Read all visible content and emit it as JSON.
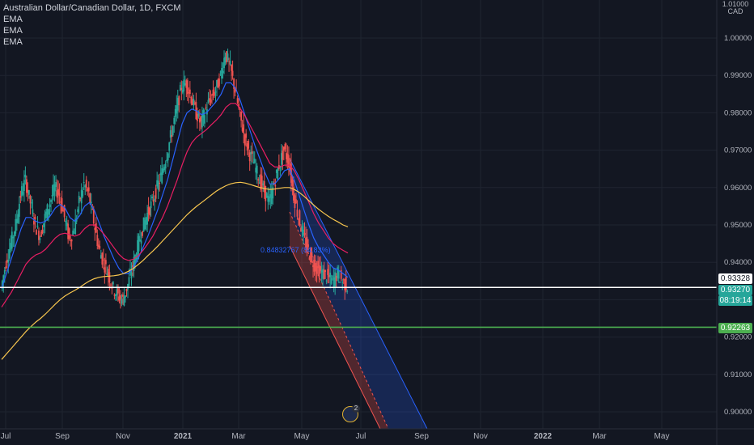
{
  "header": {
    "title": "Australian Dollar/Canadian Dollar, 1D, FXCM",
    "indicators": [
      "EMA",
      "EMA",
      "EMA"
    ],
    "currency_line1": "1.01000",
    "currency_line2": "CAD"
  },
  "annotation": {
    "text": "0.84832767 (84.83%)"
  },
  "price_tags": {
    "white_line": "0.93328",
    "current_price": "0.93270",
    "countdown": "08:19:14",
    "support": "0.92263"
  },
  "avatar_badge": "2",
  "colors": {
    "background": "#131722",
    "grid": "#1f2430",
    "bull": "#26a69a",
    "bear": "#ef5350",
    "ema_fast": "#2962ff",
    "ema_mid": "#e91e63",
    "ema_slow": "#f9c74f",
    "support_line": "#4caf50",
    "price_line": "#ffffff"
  },
  "chart_data": {
    "type": "candlestick",
    "title": "Australian Dollar/Canadian Dollar, 1D, FXCM",
    "yaxis": {
      "ticks": [
        0.9,
        0.91,
        0.92,
        0.93,
        0.94,
        0.95,
        0.96,
        0.97,
        0.98,
        0.99,
        1.0
      ],
      "tick_labels": [
        "0.90000",
        "0.91000",
        "0.92000",
        "",
        "0.94000",
        "0.95000",
        "0.96000",
        "0.97000",
        "0.98000",
        "0.99000",
        "1.00000"
      ],
      "range": [
        0.8975,
        1.0105
      ]
    },
    "xaxis": {
      "labels": [
        "Jul",
        "Sep",
        "Nov",
        "2021",
        "Mar",
        "May",
        "Jul",
        "Sep",
        "Nov",
        "2022",
        "Mar",
        "May"
      ],
      "bold": [
        "2021",
        "2022"
      ]
    },
    "price_close_path": [
      [
        0.933,
        0.94,
        0.945,
        0.95,
        0.958,
        0.962,
        0.956,
        0.95,
        0.947,
        0.952,
        0.956,
        0.96,
        0.958,
        0.952,
        0.946,
        0.949,
        0.956,
        0.961,
        0.958,
        0.951,
        0.944,
        0.94,
        0.937,
        0.933,
        0.931,
        0.93,
        0.934,
        0.939,
        0.944,
        0.949,
        0.953,
        0.956,
        0.96,
        0.964,
        0.969,
        0.975,
        0.981,
        0.987,
        0.988,
        0.984,
        0.98,
        0.977,
        0.981,
        0.984,
        0.986,
        0.99,
        0.996,
        0.992,
        0.986,
        0.979,
        0.973,
        0.969,
        0.966,
        0.962,
        0.959,
        0.956,
        0.961,
        0.966,
        0.97,
        0.967,
        0.958,
        0.952,
        0.947,
        0.943,
        0.94,
        0.938,
        0.937,
        0.936,
        0.935,
        0.937,
        0.935,
        0.9335
      ]
    ],
    "series": [
      {
        "name": "EMA",
        "role": "fast",
        "values": [
          0.933,
          0.937,
          0.941,
          0.945,
          0.949,
          0.952,
          0.952,
          0.951,
          0.9505,
          0.951,
          0.9525,
          0.9545,
          0.9555,
          0.9545,
          0.952,
          0.951,
          0.9525,
          0.955,
          0.956,
          0.954,
          0.9505,
          0.947,
          0.944,
          0.941,
          0.9385,
          0.937,
          0.937,
          0.9385,
          0.941,
          0.944,
          0.947,
          0.9505,
          0.954,
          0.958,
          0.962,
          0.967,
          0.972,
          0.977,
          0.98,
          0.981,
          0.9805,
          0.9795,
          0.98,
          0.9815,
          0.983,
          0.985,
          0.988,
          0.988,
          0.9865,
          0.983,
          0.979,
          0.975,
          0.971,
          0.9675,
          0.964,
          0.961,
          0.961,
          0.9625,
          0.9645,
          0.965,
          0.962,
          0.958,
          0.954,
          0.95,
          0.9465,
          0.944,
          0.942,
          0.94,
          0.9385,
          0.938,
          0.937,
          0.936
        ]
      },
      {
        "name": "EMA",
        "role": "mid",
        "values": [
          0.928,
          0.93,
          0.932,
          0.9345,
          0.937,
          0.9395,
          0.941,
          0.942,
          0.9425,
          0.9435,
          0.945,
          0.9465,
          0.9475,
          0.9478,
          0.9474,
          0.947,
          0.9475,
          0.949,
          0.95,
          0.95,
          0.949,
          0.9475,
          0.9458,
          0.944,
          0.9422,
          0.941,
          0.9405,
          0.9408,
          0.9418,
          0.9432,
          0.945,
          0.947,
          0.9495,
          0.952,
          0.955,
          0.9585,
          0.962,
          0.966,
          0.9695,
          0.972,
          0.9735,
          0.9745,
          0.9755,
          0.9768,
          0.978,
          0.9795,
          0.9815,
          0.9825,
          0.9825,
          0.981,
          0.979,
          0.9765,
          0.974,
          0.9715,
          0.969,
          0.9665,
          0.9655,
          0.9655,
          0.966,
          0.966,
          0.9645,
          0.962,
          0.959,
          0.956,
          0.953,
          0.9505,
          0.9485,
          0.9465,
          0.945,
          0.944,
          0.9432,
          0.9425
        ]
      },
      {
        "name": "EMA",
        "role": "slow",
        "values": [
          0.914,
          0.9155,
          0.917,
          0.9185,
          0.92,
          0.9215,
          0.9228,
          0.924,
          0.925,
          0.9262,
          0.9275,
          0.9288,
          0.93,
          0.931,
          0.9318,
          0.9325,
          0.9333,
          0.9342,
          0.935,
          0.9356,
          0.936,
          0.9362,
          0.9363,
          0.9364,
          0.9366,
          0.937,
          0.9376,
          0.9384,
          0.9394,
          0.9405,
          0.9418,
          0.943,
          0.9443,
          0.9457,
          0.9471,
          0.9485,
          0.9499,
          0.9513,
          0.9527,
          0.9539,
          0.955,
          0.956,
          0.957,
          0.958,
          0.959,
          0.9598,
          0.9605,
          0.961,
          0.9613,
          0.9614,
          0.9612,
          0.9608,
          0.9604,
          0.96,
          0.9597,
          0.9595,
          0.9596,
          0.9598,
          0.96,
          0.96,
          0.9595,
          0.9587,
          0.9577,
          0.9565,
          0.9553,
          0.9542,
          0.9532,
          0.9523,
          0.9515,
          0.9508,
          0.95,
          0.9495
        ]
      }
    ],
    "horizontal_lines": [
      {
        "value": 0.93328,
        "label": "0.93328",
        "color": "#ffffff"
      },
      {
        "value": 0.92263,
        "label": "0.92263",
        "color": "#4caf50"
      }
    ],
    "last_price": 0.9327,
    "regression_channel": {
      "label": "0.84832767 (84.83%)",
      "upper_band_color": "#2962ff",
      "lower_band_color": "#ef5350"
    }
  }
}
